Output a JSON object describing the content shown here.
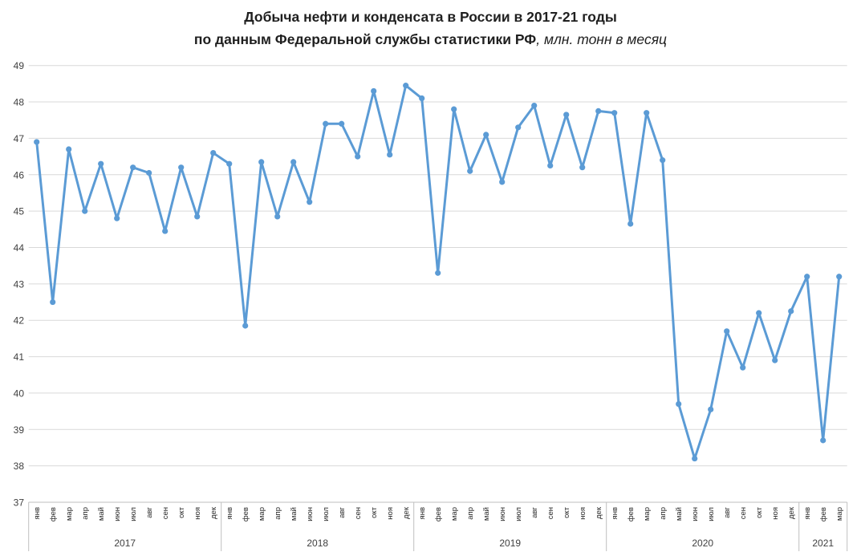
{
  "title": {
    "line1": "Добыча нефти и конденсата в России в 2017-21 годы",
    "line2_bold": "по данным Федеральной службы статистики РФ",
    "line2_italic": ", млн. тонн в месяц"
  },
  "chart_data": {
    "type": "line",
    "title": "Добыча нефти и конденсата в России в 2017-21 годы по данным Федеральной службы статистики РФ, млн. тонн в месяц",
    "ylabel": "",
    "xlabel": "",
    "ylim": [
      37,
      49
    ],
    "yticks": [
      37,
      38,
      39,
      40,
      41,
      42,
      43,
      44,
      45,
      46,
      47,
      48,
      49
    ],
    "grid": "horizontal",
    "legend": "none",
    "line_color": "#5B9BD5",
    "gridline_color": "#D9D9D9",
    "axis_line_color": "#BFBFBF",
    "tick_label_color": "#404040",
    "month_label_color": "#262626",
    "years": [
      {
        "label": "2017",
        "months": [
          "янв",
          "фев",
          "мар",
          "апр",
          "май",
          "июн",
          "июл",
          "авг",
          "сен",
          "окт",
          "ноя",
          "дек"
        ]
      },
      {
        "label": "2018",
        "months": [
          "янв",
          "фев",
          "мар",
          "апр",
          "май",
          "июн",
          "июл",
          "авг",
          "сен",
          "окт",
          "ноя",
          "дек"
        ]
      },
      {
        "label": "2019",
        "months": [
          "янв",
          "фев",
          "мар",
          "апр",
          "май",
          "июн",
          "июл",
          "авг",
          "сен",
          "окт",
          "ноя",
          "дек"
        ]
      },
      {
        "label": "2020",
        "months": [
          "янв",
          "фев",
          "мар",
          "апр",
          "май",
          "июн",
          "июл",
          "авг",
          "сен",
          "окт",
          "ноя",
          "дек"
        ]
      },
      {
        "label": "2021",
        "months": [
          "янв",
          "фев",
          "мар"
        ]
      }
    ],
    "values": [
      46.9,
      42.5,
      46.7,
      45.0,
      46.3,
      44.8,
      46.2,
      46.05,
      44.45,
      46.2,
      44.85,
      46.6,
      46.3,
      41.85,
      46.35,
      44.85,
      46.35,
      45.25,
      47.4,
      47.4,
      46.5,
      48.3,
      46.55,
      48.45,
      48.1,
      43.3,
      47.8,
      46.1,
      47.1,
      45.8,
      47.3,
      47.9,
      46.25,
      47.65,
      46.2,
      47.75,
      47.7,
      44.65,
      47.7,
      46.4,
      39.7,
      38.2,
      39.55,
      41.7,
      40.7,
      42.2,
      40.9,
      42.25,
      43.2,
      38.7,
      43.2
    ]
  }
}
